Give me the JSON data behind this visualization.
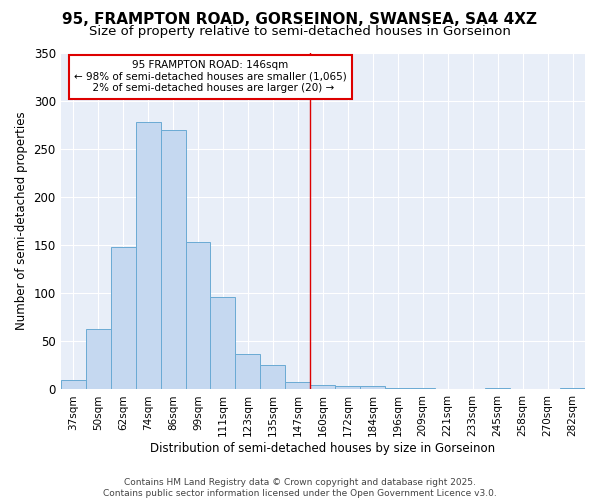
{
  "title": "95, FRAMPTON ROAD, GORSEINON, SWANSEA, SA4 4XZ",
  "subtitle": "Size of property relative to semi-detached houses in Gorseinon",
  "xlabel": "Distribution of semi-detached houses by size in Gorseinon",
  "ylabel": "Number of semi-detached properties",
  "categories": [
    "37sqm",
    "50sqm",
    "62sqm",
    "74sqm",
    "86sqm",
    "99sqm",
    "111sqm",
    "123sqm",
    "135sqm",
    "147sqm",
    "160sqm",
    "172sqm",
    "184sqm",
    "196sqm",
    "209sqm",
    "221sqm",
    "233sqm",
    "245sqm",
    "258sqm",
    "270sqm",
    "282sqm"
  ],
  "values": [
    10,
    63,
    148,
    278,
    270,
    153,
    96,
    37,
    25,
    8,
    5,
    4,
    4,
    2,
    2,
    0,
    0,
    2,
    0,
    0,
    2
  ],
  "bar_color": "#c5d8f0",
  "bar_edge_color": "#6aaad4",
  "annotation_box_color": "#dd0000",
  "vline_color": "#dd0000",
  "vline_x_index": 9.5,
  "ylim": [
    0,
    350
  ],
  "yticks": [
    0,
    50,
    100,
    150,
    200,
    250,
    300,
    350
  ],
  "fig_background": "#ffffff",
  "plot_background": "#e8eef8",
  "grid_color": "#ffffff",
  "title_fontsize": 11,
  "subtitle_fontsize": 9.5,
  "footer_line1": "Contains HM Land Registry data © Crown copyright and database right 2025.",
  "footer_line2": "Contains public sector information licensed under the Open Government Licence v3.0."
}
